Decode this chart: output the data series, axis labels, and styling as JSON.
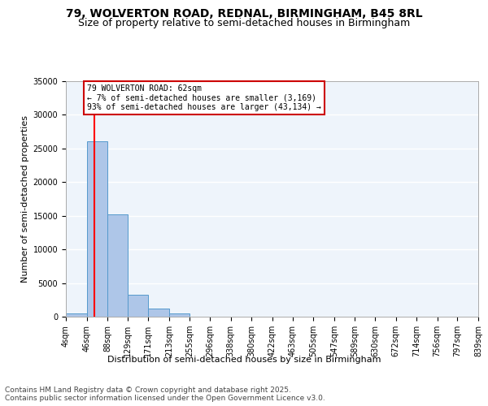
{
  "title1": "79, WOLVERTON ROAD, REDNAL, BIRMINGHAM, B45 8RL",
  "title2": "Size of property relative to semi-detached houses in Birmingham",
  "xlabel": "Distribution of semi-detached houses by size in Birmingham",
  "ylabel": "Number of semi-detached properties",
  "bin_edges": [
    4,
    46,
    88,
    129,
    171,
    213,
    255,
    296,
    338,
    380,
    422,
    463,
    505,
    547,
    589,
    630,
    672,
    714,
    756,
    797,
    839
  ],
  "bar_heights": [
    500,
    26100,
    15200,
    3200,
    1200,
    500,
    50,
    20,
    10,
    5,
    3,
    2,
    2,
    2,
    2,
    2,
    2,
    2,
    2,
    2
  ],
  "bar_color": "#aec6e8",
  "bar_edge_color": "#5599cc",
  "background_color": "#eef4fb",
  "grid_color": "#ffffff",
  "red_line_x": 62,
  "annotation_text": "79 WOLVERTON ROAD: 62sqm\n← 7% of semi-detached houses are smaller (3,169)\n93% of semi-detached houses are larger (43,134) →",
  "annotation_box_color": "#ffffff",
  "annotation_box_edge_color": "#cc0000",
  "ylim": [
    0,
    35000
  ],
  "yticks": [
    0,
    5000,
    10000,
    15000,
    20000,
    25000,
    30000,
    35000
  ],
  "footnote": "Contains HM Land Registry data © Crown copyright and database right 2025.\nContains public sector information licensed under the Open Government Licence v3.0.",
  "title_fontsize": 10,
  "subtitle_fontsize": 9,
  "axis_label_fontsize": 8,
  "tick_fontsize": 7,
  "annotation_fontsize": 7,
  "footnote_fontsize": 6.5
}
